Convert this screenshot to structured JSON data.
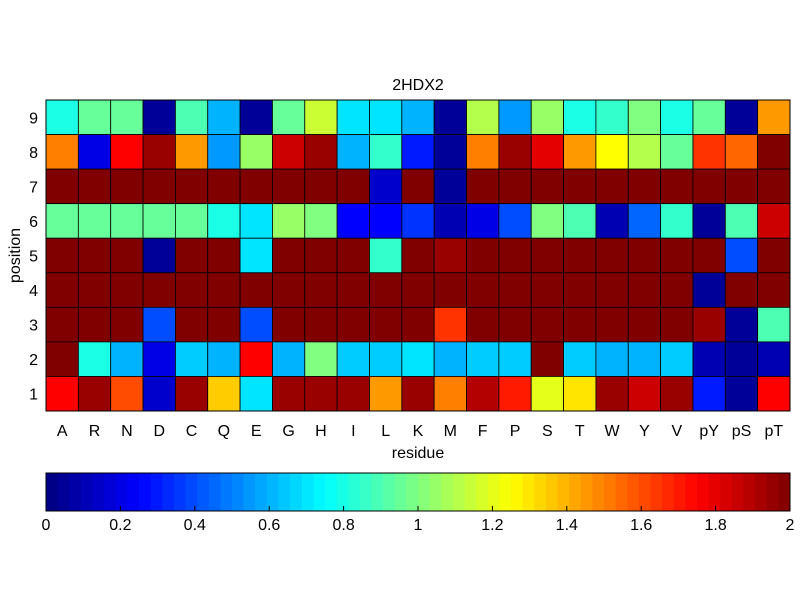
{
  "chart_data": {
    "type": "heatmap",
    "title": "2HDX2",
    "xlabel": "residue",
    "ylabel": "position",
    "x_categories": [
      "A",
      "R",
      "N",
      "D",
      "C",
      "Q",
      "E",
      "G",
      "H",
      "I",
      "L",
      "K",
      "M",
      "F",
      "P",
      "S",
      "T",
      "W",
      "Y",
      "V",
      "pY",
      "pS",
      "pT"
    ],
    "y_categories": [
      "1",
      "2",
      "3",
      "4",
      "5",
      "6",
      "7",
      "8",
      "9"
    ],
    "value_range": [
      0,
      2
    ],
    "colormap": "jet",
    "grid": true,
    "colorbar": {
      "placement": "bottom",
      "ticks": [
        0,
        0.2,
        0.4,
        0.6,
        0.8,
        1,
        1.2,
        1.4,
        1.6,
        1.8,
        2
      ],
      "tick_labels": [
        "0",
        "0.2",
        "0.4",
        "0.6",
        "0.8",
        "1",
        "1.2",
        "1.4",
        "1.6",
        "1.8",
        "2"
      ]
    },
    "rows": [
      {
        "position": "9",
        "values": [
          0.8,
          0.95,
          0.95,
          0.05,
          0.9,
          0.6,
          0.05,
          0.95,
          1.15,
          0.7,
          0.7,
          0.6,
          0.05,
          1.1,
          0.55,
          1.05,
          0.8,
          0.85,
          1.0,
          0.8,
          0.95,
          0.05,
          1.45
        ]
      },
      {
        "position": "8",
        "values": [
          1.5,
          0.2,
          1.75,
          1.95,
          1.45,
          0.55,
          1.05,
          1.85,
          1.95,
          0.6,
          0.85,
          0.3,
          0.05,
          1.5,
          1.95,
          1.8,
          1.45,
          1.25,
          1.1,
          0.95,
          1.65,
          1.55,
          2.0
        ]
      },
      {
        "position": "7",
        "values": [
          2.0,
          2.0,
          2.0,
          2.0,
          2.0,
          2.0,
          2.0,
          2.0,
          2.0,
          2.0,
          0.15,
          2.0,
          0.05,
          2.0,
          2.0,
          2.0,
          2.0,
          2.0,
          2.0,
          2.0,
          2.0,
          2.0,
          2.0
        ]
      },
      {
        "position": "6",
        "values": [
          0.95,
          0.95,
          0.95,
          0.95,
          0.95,
          0.8,
          0.7,
          1.05,
          1.0,
          0.25,
          0.25,
          0.35,
          0.1,
          0.2,
          0.4,
          1.0,
          0.9,
          0.1,
          0.45,
          0.85,
          0.05,
          0.9,
          1.85
        ]
      },
      {
        "position": "5",
        "values": [
          2.0,
          2.0,
          2.0,
          0.05,
          2.0,
          2.0,
          0.7,
          2.0,
          2.0,
          2.0,
          0.85,
          2.0,
          1.95,
          2.0,
          2.0,
          2.0,
          2.0,
          2.0,
          2.0,
          2.0,
          2.0,
          0.4,
          2.0
        ]
      },
      {
        "position": "4",
        "values": [
          2.0,
          2.0,
          2.0,
          2.0,
          2.0,
          2.0,
          2.0,
          2.0,
          2.0,
          2.0,
          2.0,
          2.0,
          2.0,
          2.0,
          2.0,
          2.0,
          2.0,
          2.0,
          2.0,
          2.0,
          0.05,
          2.0,
          2.0
        ]
      },
      {
        "position": "3",
        "values": [
          2.0,
          2.0,
          2.0,
          0.4,
          2.0,
          2.0,
          0.4,
          2.0,
          2.0,
          2.0,
          2.0,
          2.0,
          1.65,
          2.0,
          2.0,
          2.0,
          2.0,
          2.0,
          2.0,
          2.0,
          1.95,
          0.05,
          0.9
        ]
      },
      {
        "position": "2",
        "values": [
          2.0,
          0.8,
          0.6,
          0.2,
          0.65,
          0.6,
          1.75,
          0.6,
          1.0,
          0.65,
          0.65,
          0.7,
          0.6,
          0.65,
          0.65,
          2.0,
          0.65,
          0.6,
          0.6,
          0.65,
          0.1,
          0.05,
          0.1
        ]
      },
      {
        "position": "1",
        "values": [
          1.75,
          1.95,
          1.6,
          0.15,
          1.95,
          1.35,
          0.7,
          1.95,
          1.95,
          1.95,
          1.45,
          1.95,
          1.5,
          1.9,
          1.7,
          1.2,
          1.3,
          1.95,
          1.85,
          1.95,
          0.3,
          0.05,
          1.75
        ]
      }
    ]
  }
}
